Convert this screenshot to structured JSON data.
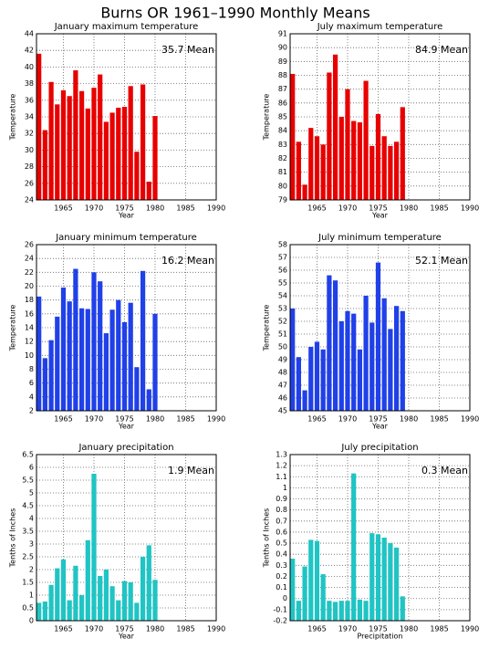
{
  "title": "Burns OR   1961–1990 Monthly Means",
  "chart_data": [
    {
      "type": "bar",
      "title": "January maximum temperature",
      "annotation": "35.7 Mean",
      "ylabel": "Temperature",
      "xlabel": "Year",
      "color": "#e80000",
      "grid": true,
      "x": [
        1961,
        1962,
        1963,
        1964,
        1965,
        1966,
        1967,
        1968,
        1969,
        1970,
        1971,
        1972,
        1973,
        1974,
        1975,
        1976,
        1977,
        1978,
        1979,
        1980
      ],
      "values": [
        41.6,
        32.4,
        38.2,
        35.5,
        37.2,
        36.5,
        39.6,
        37.1,
        35.0,
        37.5,
        39.1,
        33.4,
        34.5,
        35.1,
        35.2,
        37.7,
        29.8,
        37.9,
        26.2,
        34.1
      ],
      "xlim": [
        1960.6,
        1990
      ],
      "xticks": [
        1965,
        1970,
        1975,
        1980,
        1985,
        1990
      ],
      "ylim": [
        24,
        44
      ],
      "yticks": [
        24,
        26,
        28,
        30,
        32,
        34,
        36,
        38,
        40,
        42,
        44
      ]
    },
    {
      "type": "bar",
      "title": "July maximum temperature",
      "annotation": "84.9 Mean",
      "ylabel": "Temperature",
      "xlabel": "Year",
      "color": "#e80000",
      "grid": true,
      "x": [
        1961,
        1962,
        1963,
        1964,
        1965,
        1966,
        1967,
        1968,
        1969,
        1970,
        1971,
        1972,
        1973,
        1974,
        1975,
        1976,
        1977,
        1978,
        1979
      ],
      "values": [
        88.1,
        83.2,
        80.1,
        84.2,
        83.6,
        83.0,
        88.2,
        89.5,
        85.0,
        87.0,
        84.7,
        84.6,
        87.6,
        82.9,
        85.2,
        83.6,
        82.9,
        83.2,
        85.7
      ],
      "xlim": [
        1960.6,
        1990
      ],
      "xticks": [
        1965,
        1970,
        1975,
        1980,
        1985,
        1990
      ],
      "ylim": [
        79,
        91
      ],
      "yticks": [
        79,
        80,
        81,
        82,
        83,
        84,
        85,
        86,
        87,
        88,
        89,
        90,
        91
      ]
    },
    {
      "type": "bar",
      "title": "January minimum temperature",
      "annotation": "16.2 Mean",
      "ylabel": "Temperature",
      "xlabel": "Year",
      "color": "#2040e8",
      "grid": true,
      "x": [
        1961,
        1962,
        1963,
        1964,
        1965,
        1966,
        1967,
        1968,
        1969,
        1970,
        1971,
        1972,
        1973,
        1974,
        1975,
        1976,
        1977,
        1978,
        1979,
        1980
      ],
      "values": [
        18.5,
        9.6,
        12.2,
        15.6,
        19.8,
        17.8,
        22.5,
        16.8,
        16.7,
        22.0,
        20.7,
        13.2,
        16.6,
        18.0,
        14.8,
        17.6,
        8.3,
        22.2,
        5.1,
        16.0
      ],
      "xlim": [
        1960.6,
        1990
      ],
      "xticks": [
        1965,
        1970,
        1975,
        1980,
        1985,
        1990
      ],
      "ylim": [
        2,
        26
      ],
      "yticks": [
        2,
        4,
        6,
        8,
        10,
        12,
        14,
        16,
        18,
        20,
        22,
        24,
        26
      ]
    },
    {
      "type": "bar",
      "title": "July minimum temperature",
      "annotation": "52.1 Mean",
      "ylabel": "Temperature",
      "xlabel": "Year",
      "color": "#2040e8",
      "grid": true,
      "x": [
        1961,
        1962,
        1963,
        1964,
        1965,
        1966,
        1967,
        1968,
        1969,
        1970,
        1971,
        1972,
        1973,
        1974,
        1975,
        1976,
        1977,
        1978,
        1979
      ],
      "values": [
        53.0,
        49.2,
        46.6,
        50.0,
        50.4,
        49.8,
        55.6,
        55.2,
        52.0,
        52.8,
        52.6,
        49.8,
        54.0,
        51.9,
        56.6,
        53.8,
        51.4,
        53.2,
        52.8
      ],
      "xlim": [
        1960.6,
        1990
      ],
      "xticks": [
        1965,
        1970,
        1975,
        1980,
        1985,
        1990
      ],
      "ylim": [
        45,
        58
      ],
      "yticks": [
        45,
        46,
        47,
        48,
        49,
        50,
        51,
        52,
        53,
        54,
        55,
        56,
        57,
        58
      ]
    },
    {
      "type": "bar",
      "title": "January precipitation",
      "annotation": "1.9 Mean",
      "ylabel": "Tenths of Inches",
      "xlabel": "Year",
      "color": "#20c4c4",
      "grid": true,
      "x": [
        1961,
        1962,
        1963,
        1964,
        1965,
        1966,
        1967,
        1968,
        1969,
        1970,
        1971,
        1972,
        1973,
        1974,
        1975,
        1976,
        1977,
        1978,
        1979,
        1980
      ],
      "values": [
        0.7,
        0.75,
        1.4,
        2.05,
        2.4,
        0.8,
        2.15,
        1.0,
        3.15,
        5.75,
        1.75,
        2.0,
        1.35,
        0.8,
        1.55,
        1.5,
        0.7,
        2.5,
        2.95,
        1.6
      ],
      "xlim": [
        1960.6,
        1990
      ],
      "xticks": [
        1965,
        1970,
        1975,
        1980,
        1985,
        1990
      ],
      "ylim": [
        0,
        6.5
      ],
      "yticks": [
        0,
        0.5,
        1,
        1.5,
        2,
        2.5,
        3,
        3.5,
        4,
        4.5,
        5,
        5.5,
        6,
        6.5
      ]
    },
    {
      "type": "bar",
      "title": "July precipitation",
      "annotation": "0.3 Mean",
      "ylabel": "Tenths of Inches",
      "xlabel": "Precipitation",
      "color": "#20c4c4",
      "grid": true,
      "x": [
        1961,
        1962,
        1963,
        1964,
        1965,
        1966,
        1967,
        1968,
        1969,
        1970,
        1971,
        1972,
        1973,
        1974,
        1975,
        1976,
        1977,
        1978,
        1979
      ],
      "values": [
        0.36,
        -0.02,
        0.29,
        0.53,
        0.52,
        0.22,
        -0.02,
        -0.03,
        -0.02,
        -0.02,
        1.13,
        -0.01,
        -0.02,
        0.59,
        0.58,
        0.55,
        0.5,
        0.46,
        0.02
      ],
      "xlim": [
        1960.6,
        1990
      ],
      "xticks": [
        1965,
        1970,
        1975,
        1980,
        1985,
        1990
      ],
      "ylim": [
        -0.2,
        1.3
      ],
      "yticks": [
        -0.2,
        -0.1,
        0,
        0.1,
        0.2,
        0.3,
        0.4,
        0.5,
        0.6,
        0.7,
        0.8,
        0.9,
        1,
        1.1,
        1.2,
        1.3
      ]
    }
  ]
}
